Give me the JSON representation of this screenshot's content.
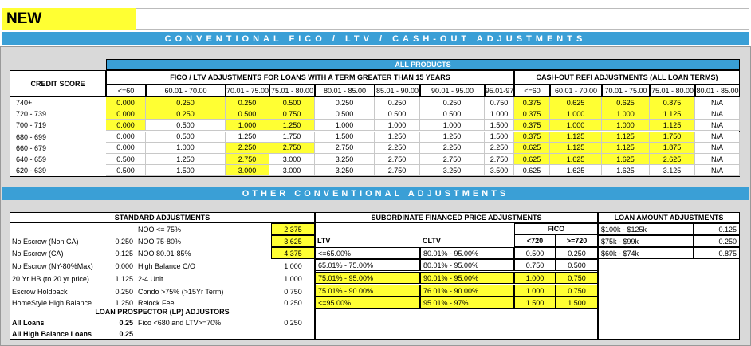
{
  "header": {
    "badge": "NEW",
    "banner": "CONVENTIONAL FICO / LTV / CASH-OUT ADJUSTMENTS"
  },
  "fico_table": {
    "title": "ALL PRODUCTS",
    "row_header": "CREDIT SCORE",
    "ltv_group": "FICO / LTV ADJUSTMENTS FOR LOANS WITH A TERM GREATER THAN 15 YEARS",
    "cashout_group": "CASH-OUT REFI ADJUSTMENTS (ALL LOAN TERMS)",
    "ltv_columns": [
      "<=60",
      "60.01 - 70.00",
      "70.01 - 75.00",
      "75.01 - 80.00",
      "80.01 - 85.00",
      "85.01 - 90.00",
      "90.01 - 95.00",
      "95.01-97"
    ],
    "cashout_columns": [
      "<=60",
      "60.01 - 70.00",
      "70.01 - 75.00",
      "75.01 - 80.00",
      "80.01 - 85.00"
    ],
    "rows": [
      {
        "score": "740+",
        "ltv": [
          "0.000",
          "0.250",
          "0.250",
          "0.500",
          "0.250",
          "0.250",
          "0.250",
          "0.750"
        ],
        "cashout": [
          "0.375",
          "0.625",
          "0.625",
          "0.875",
          "N/A"
        ]
      },
      {
        "score": "720 - 739",
        "ltv": [
          "0.000",
          "0.250",
          "0.500",
          "0.750",
          "0.500",
          "0.500",
          "0.500",
          "1.000"
        ],
        "cashout": [
          "0.375",
          "1.000",
          "1.000",
          "1.125",
          "N/A"
        ]
      },
      {
        "score": "700 - 719",
        "ltv": [
          "0.000",
          "0.500",
          "1.000",
          "1.250",
          "1.000",
          "1.000",
          "1.000",
          "1.500"
        ],
        "cashout": [
          "0.375",
          "1.000",
          "1.000",
          "1.125",
          "N/A"
        ]
      },
      {
        "score": "680 - 699",
        "ltv": [
          "0.000",
          "0.500",
          "1.250",
          "1.750",
          "1.500",
          "1.250",
          "1.250",
          "1.500"
        ],
        "cashout": [
          "0.375",
          "1.125",
          "1.125",
          "1.750",
          "N/A"
        ]
      },
      {
        "score": "660 - 679",
        "ltv": [
          "0.000",
          "1.000",
          "2.250",
          "2.750",
          "2.750",
          "2.250",
          "2.250",
          "2.250"
        ],
        "cashout": [
          "0.625",
          "1.125",
          "1.125",
          "1.875",
          "N/A"
        ]
      },
      {
        "score": "640 - 659",
        "ltv": [
          "0.500",
          "1.250",
          "2.750",
          "3.000",
          "3.250",
          "2.750",
          "2.750",
          "2.750"
        ],
        "cashout": [
          "0.625",
          "1.625",
          "1.625",
          "2.625",
          "N/A"
        ]
      },
      {
        "score": "620 - 639",
        "ltv": [
          "0.500",
          "1.500",
          "3.000",
          "3.000",
          "3.250",
          "2.750",
          "3.250",
          "3.500"
        ],
        "cashout": [
          "0.625",
          "1.625",
          "1.625",
          "3.125",
          "N/A"
        ]
      }
    ]
  },
  "other_banner": "OTHER CONVENTIONAL ADJUSTMENTS",
  "standard": {
    "title": "STANDARD ADJUSTMENTS",
    "rows": [
      {
        "right_label": "NOO <= 75%",
        "right_value": "2.375"
      },
      {
        "left_label": "No Escrow (Non CA)",
        "left_value": "0.250",
        "right_label": "NOO 75-80%",
        "right_value": "3.625"
      },
      {
        "left_label": "No Escrow (CA)",
        "left_value": "0.125",
        "right_label": "NOO 80.01-85%",
        "right_value": "4.375"
      },
      {
        "left_label": "No Escrow (NY-80%Max)",
        "left_value": "0.000",
        "right_label": "High Balance C/O",
        "right_value": "1.000"
      },
      {
        "left_label": "20 Yr HB (to 20 yr price)",
        "left_value": "1.125",
        "right_label": "2-4 Unit",
        "right_value": "1.000"
      },
      {
        "left_label": "Escrow Holdback",
        "left_value": "0.250",
        "right_label": "Condo >75% (>15Yr Term)",
        "right_value": "0.750"
      },
      {
        "left_label": "HomeStyle High Balance",
        "left_value": "1.250",
        "right_label": "Relock Fee",
        "right_value": "0.250"
      }
    ],
    "lp_title": "LOAN PROSPECTOR (LP) ADJUSTORS",
    "lp_rows": [
      {
        "left_label": "All Loans",
        "left_value": "0.25",
        "right_label": "Fico <680 and LTV>=70%",
        "right_value": "0.250"
      },
      {
        "left_label": "All High Balance Loans",
        "left_value": "0.25"
      }
    ]
  },
  "subordinate": {
    "title": "SUBORDINATE FINANCED PRICE ADJUSTMENTS",
    "fico_header": "FICO",
    "columns": [
      "LTV",
      "CLTV",
      "<720",
      ">=720"
    ],
    "rows": [
      [
        "<=65.00%",
        "80.01% - 95.00%",
        "0.500",
        "0.250"
      ],
      [
        "65.01% - 75.00%",
        "80.01% - 95.00%",
        "0.750",
        "0.500"
      ],
      [
        "75.01% - 95.00%",
        "90.01% - 95.00%",
        "1.000",
        "0.750"
      ],
      [
        "75.01% - 90.00%",
        "76.01% - 90.00%",
        "1.000",
        "0.750"
      ],
      [
        "<=95.00%",
        "95.01% - 97%",
        "1.500",
        "1.500"
      ]
    ]
  },
  "loan_amount": {
    "title": "LOAN AMOUNT ADJUSTMENTS",
    "rows": [
      [
        "$100k - $125k",
        "0.125"
      ],
      [
        "$75k - $99k",
        "0.250"
      ],
      [
        "$60k - $74k",
        "0.875"
      ]
    ]
  }
}
